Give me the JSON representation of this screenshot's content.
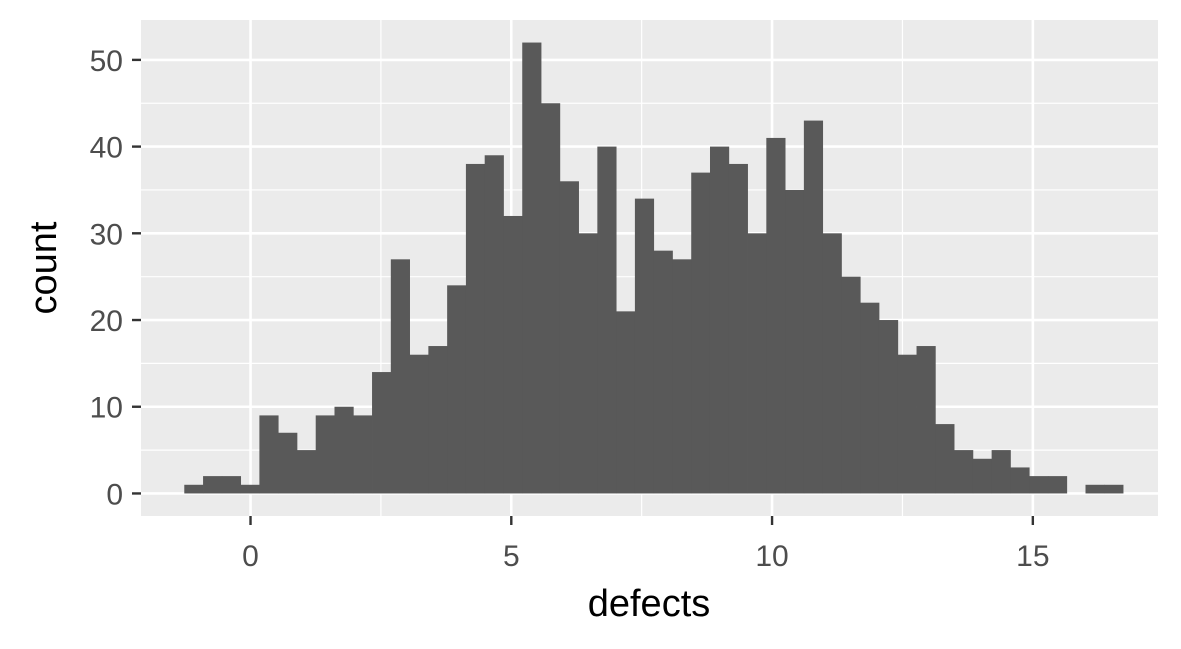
{
  "chart_data": {
    "type": "bar",
    "subtype": "histogram",
    "title": "",
    "xlabel": "defects",
    "ylabel": "count",
    "xlim": [
      -2.1,
      17.4
    ],
    "ylim": [
      -2.6,
      54.6
    ],
    "bin_width": 0.36,
    "first_bin_left": -1.27,
    "values": [
      1,
      2,
      2,
      1,
      9,
      7,
      5,
      9,
      10,
      9,
      14,
      27,
      16,
      17,
      24,
      38,
      39,
      32,
      52,
      45,
      36,
      30,
      40,
      21,
      34,
      28,
      27,
      37,
      40,
      38,
      30,
      41,
      35,
      43,
      30,
      25,
      22,
      20,
      16,
      17,
      8,
      5,
      4,
      5,
      3,
      2,
      2,
      0,
      1,
      1
    ],
    "x_ticks": [
      0,
      5,
      10,
      15
    ],
    "x_tick_labels": [
      "0",
      "5",
      "10",
      "15"
    ],
    "y_ticks": [
      0,
      10,
      20,
      30,
      40,
      50
    ],
    "y_tick_labels": [
      "0",
      "10",
      "20",
      "30",
      "40",
      "50"
    ],
    "grid": true,
    "legend": "none",
    "colors": {
      "panel": "#ebebeb",
      "grid": "#ffffff",
      "bar": "#595959",
      "tick": "#333333",
      "tick_label": "#4d4d4d",
      "axis_title": "#000000"
    }
  }
}
